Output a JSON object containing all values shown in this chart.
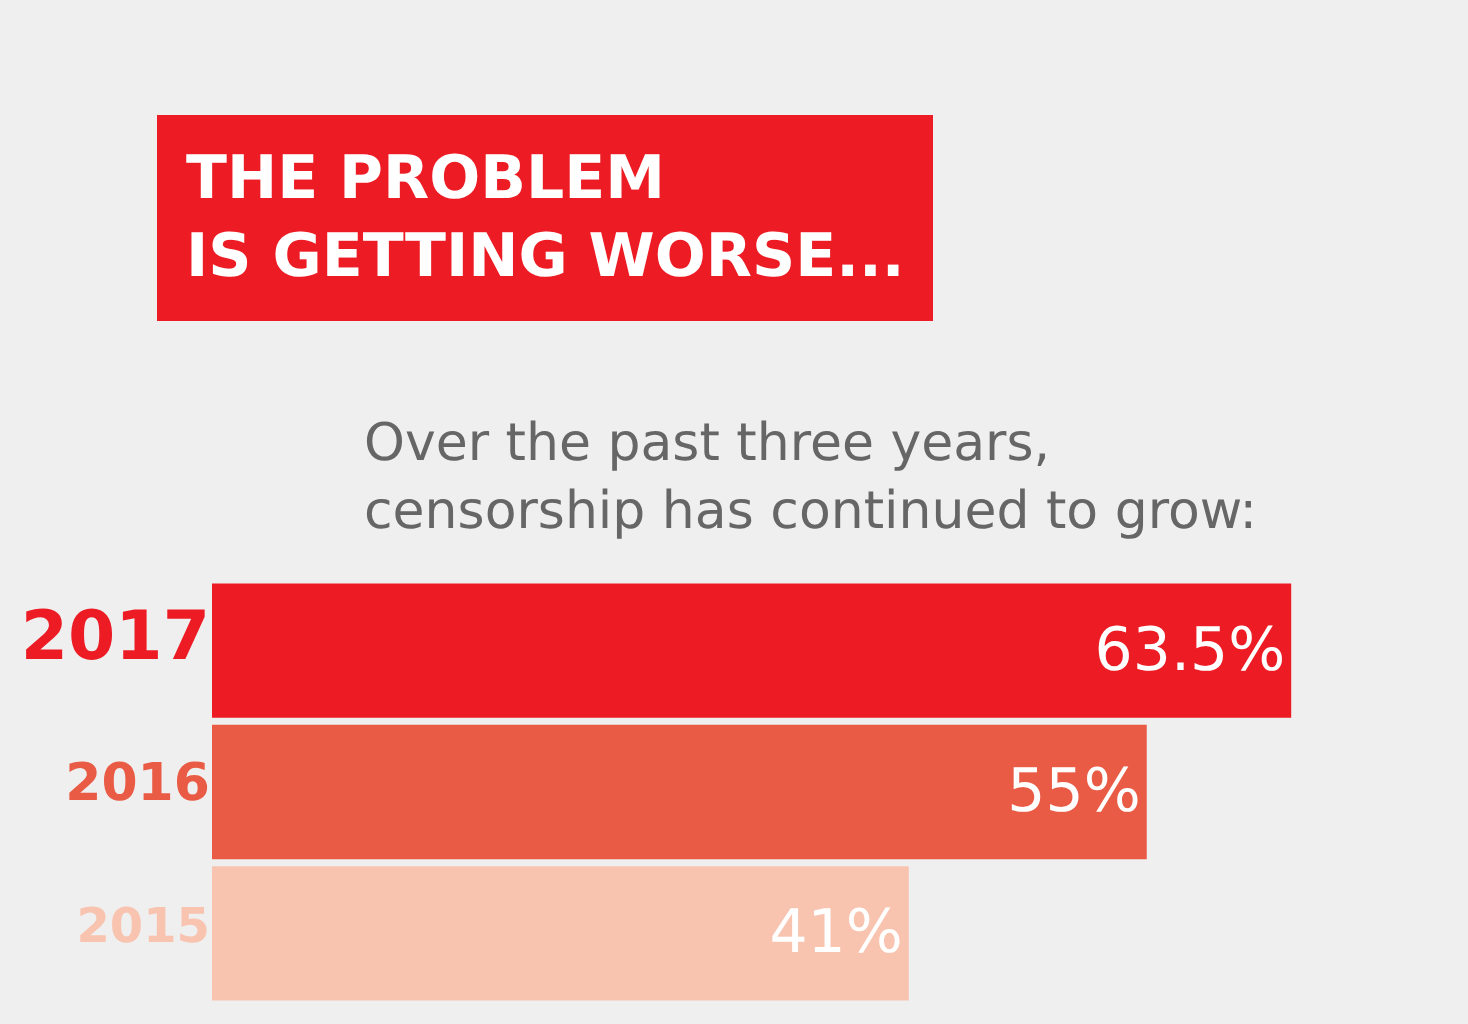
{
  "chart_data": {
    "type": "bar",
    "orientation": "horizontal",
    "title": "THE PROBLEM\nIS GETTING WORSE...",
    "subtitle": "Over the past three years,\ncensorship has continued to grow:",
    "categories": [
      "2017",
      "2016",
      "2015"
    ],
    "values": [
      63.5,
      55,
      41
    ],
    "colors": [
      "#ed1c24",
      "#e95b45",
      "#f8c4b0"
    ],
    "value_labels": [
      "63.5%",
      "55%",
      "41%"
    ],
    "grid": false,
    "legend": false
  }
}
